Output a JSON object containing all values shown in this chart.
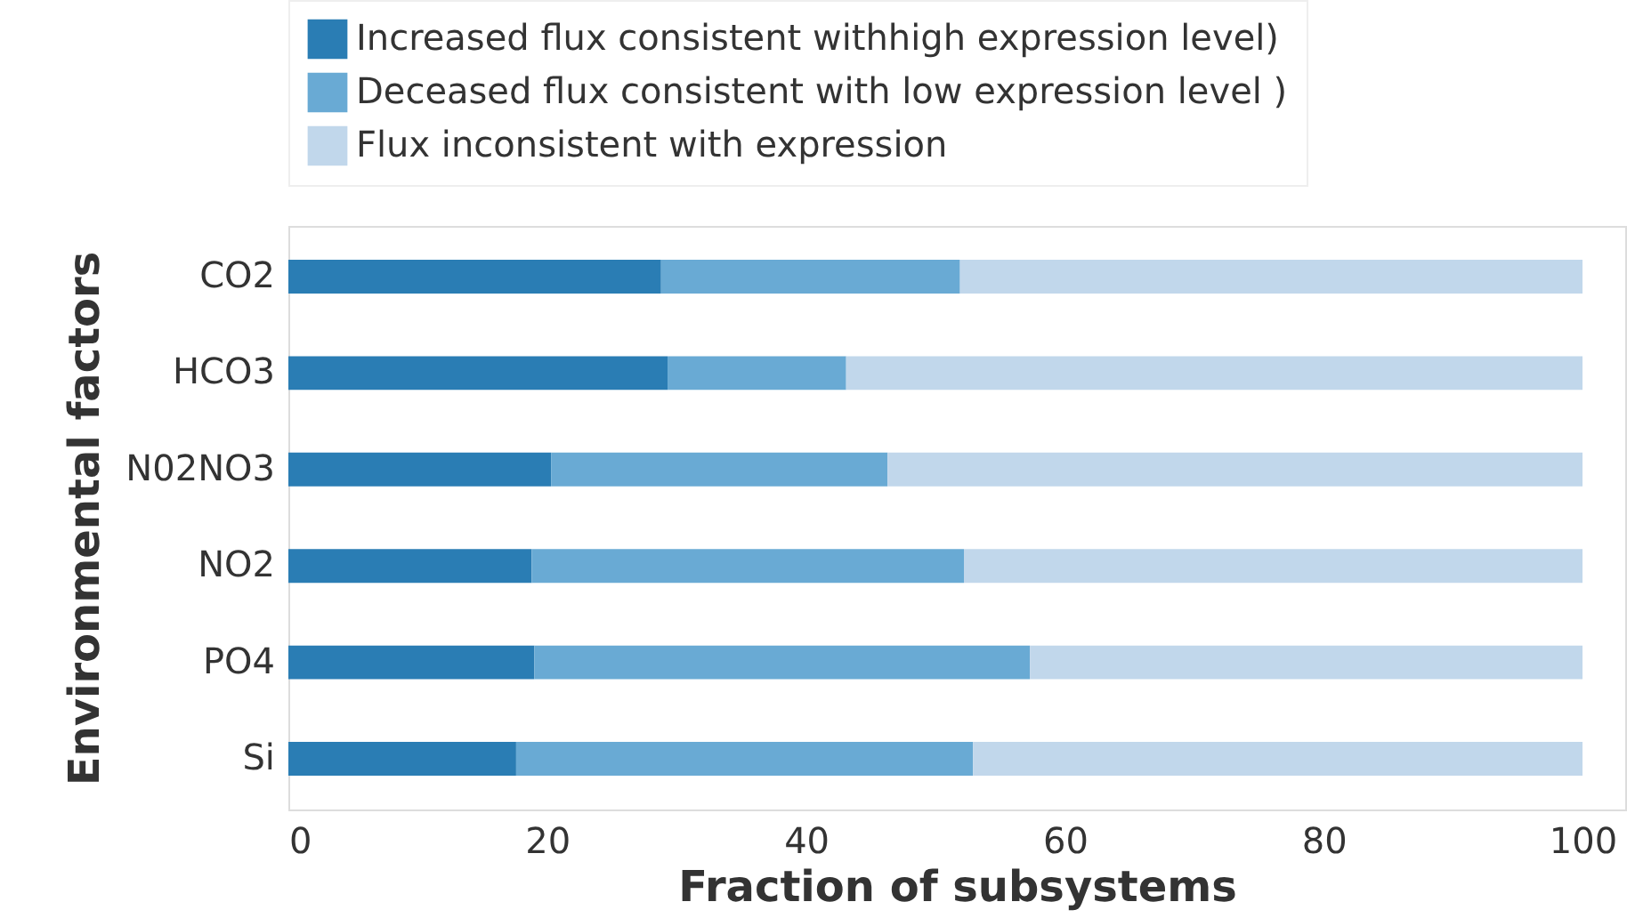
{
  "chart_data": {
    "type": "bar",
    "orientation": "horizontal",
    "stacked": true,
    "xlabel": "Fraction of subsystems",
    "ylabel": "Environmental factors",
    "categories": [
      "CO2",
      "HCO3",
      "N02NO3",
      "NO2",
      "PO4",
      "Si"
    ],
    "series": [
      {
        "name": "Increased flux consistent withhigh expression level)",
        "color": "#2a7db4",
        "values": [
          28.8,
          29.3,
          20.3,
          18.8,
          19.0,
          17.6
        ]
      },
      {
        "name": "Deceased flux consistent with low expression level )",
        "color": "#69aad4",
        "values": [
          23.1,
          13.8,
          26.0,
          33.4,
          38.3,
          35.3
        ]
      },
      {
        "name": "Flux inconsistent with expression",
        "color": "#c1d7eb",
        "values": [
          48.1,
          56.9,
          53.7,
          47.8,
          42.7,
          47.1
        ]
      }
    ],
    "xlim": [
      0,
      103.3
    ],
    "xticks": [
      0,
      20,
      40,
      60,
      80,
      100
    ],
    "grid": false,
    "legend": "top"
  }
}
